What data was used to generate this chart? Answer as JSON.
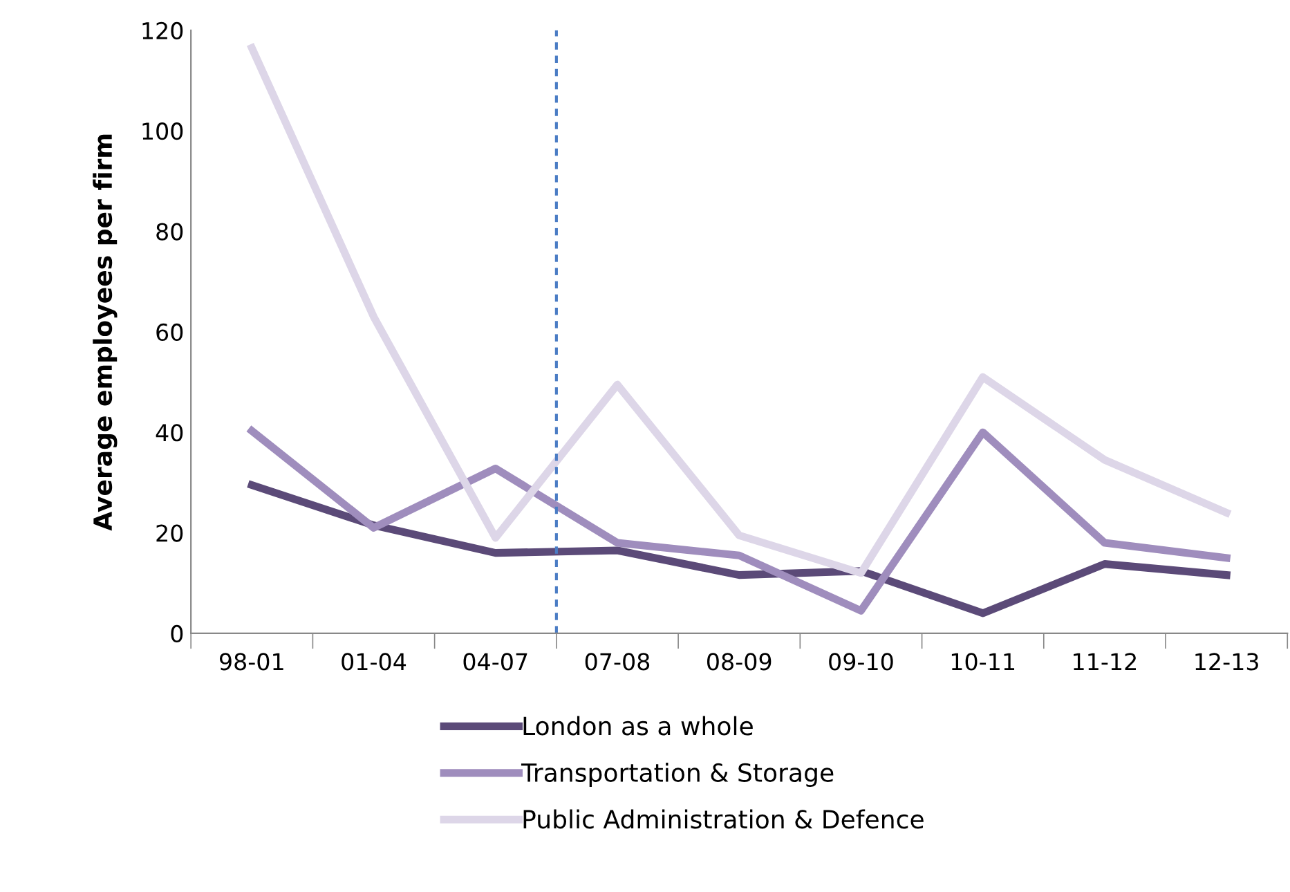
{
  "chart_data": {
    "type": "line",
    "ylabel": "Average employees per firm",
    "categories": [
      "98-01",
      "01-04",
      "04-07",
      "07-08",
      "08-09",
      "09-10",
      "10-11",
      "11-12",
      "12-13"
    ],
    "series": [
      {
        "name": "London as a whole",
        "color": "#5b4a78",
        "values": [
          29.5,
          21.5,
          16,
          16.5,
          11.6,
          12.4,
          4,
          13.8,
          11.6
        ]
      },
      {
        "name": "Transportation & Storage",
        "color": "#9f8dbd",
        "values": [
          40.3,
          21,
          32.8,
          18,
          15.5,
          4.5,
          40,
          18,
          15
        ]
      },
      {
        "name": "Public Administration & Defence",
        "color": "#ddd6e8",
        "values": [
          116.5,
          63,
          19,
          49.5,
          19.5,
          12,
          51,
          34.5,
          24
        ]
      }
    ],
    "ylim": [
      0,
      120
    ],
    "yticks": [
      0,
      20,
      40,
      60,
      80,
      100,
      120
    ],
    "grid": false,
    "legend": "bottom",
    "marker": "none",
    "line_style": "solid"
  }
}
